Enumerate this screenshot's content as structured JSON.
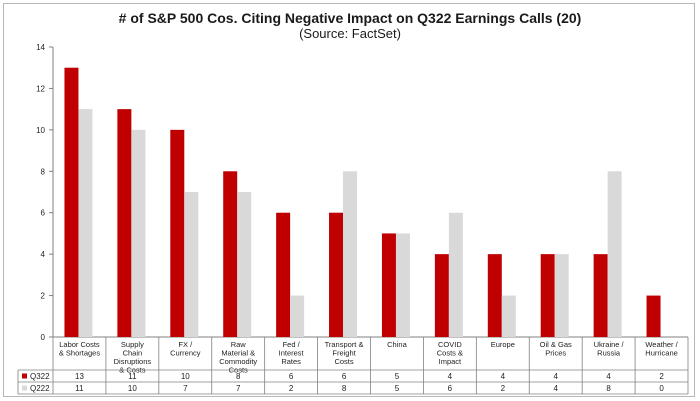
{
  "chart_data": {
    "type": "bar",
    "title": "# of S&P 500 Cos. Citing Negative Impact on Q322 Earnings Calls (20)",
    "subtitle": "(Source: FactSet)",
    "xlabel": "",
    "ylabel": "",
    "ylim": [
      0,
      14
    ],
    "yticks": [
      0,
      2,
      4,
      6,
      8,
      10,
      12,
      14
    ],
    "grid": false,
    "legend": "data-table",
    "categories": [
      [
        "Labor Costs",
        "& Shortages"
      ],
      [
        "Supply",
        "Chain",
        "Disruptions",
        "& Costs"
      ],
      [
        "FX /",
        "Currency"
      ],
      [
        "Raw",
        "Material &",
        "Commodity",
        "Costs"
      ],
      [
        "Fed /",
        "Interest",
        "Rates"
      ],
      [
        "Transport &",
        "Freight",
        "Costs"
      ],
      [
        "China"
      ],
      [
        "COVID",
        "Costs &",
        "Impact"
      ],
      [
        "Europe"
      ],
      [
        "Oil & Gas",
        "Prices"
      ],
      [
        "Ukraine /",
        "Russia"
      ],
      [
        "Weather /",
        "Hurricane"
      ]
    ],
    "series": [
      {
        "name": "Q322",
        "color": "#c00000",
        "values": [
          13,
          11,
          10,
          8,
          6,
          6,
          5,
          4,
          4,
          4,
          4,
          2
        ]
      },
      {
        "name": "Q222",
        "color": "#d9d9d9",
        "values": [
          11,
          10,
          7,
          7,
          2,
          8,
          5,
          6,
          2,
          4,
          8,
          0
        ]
      }
    ]
  }
}
